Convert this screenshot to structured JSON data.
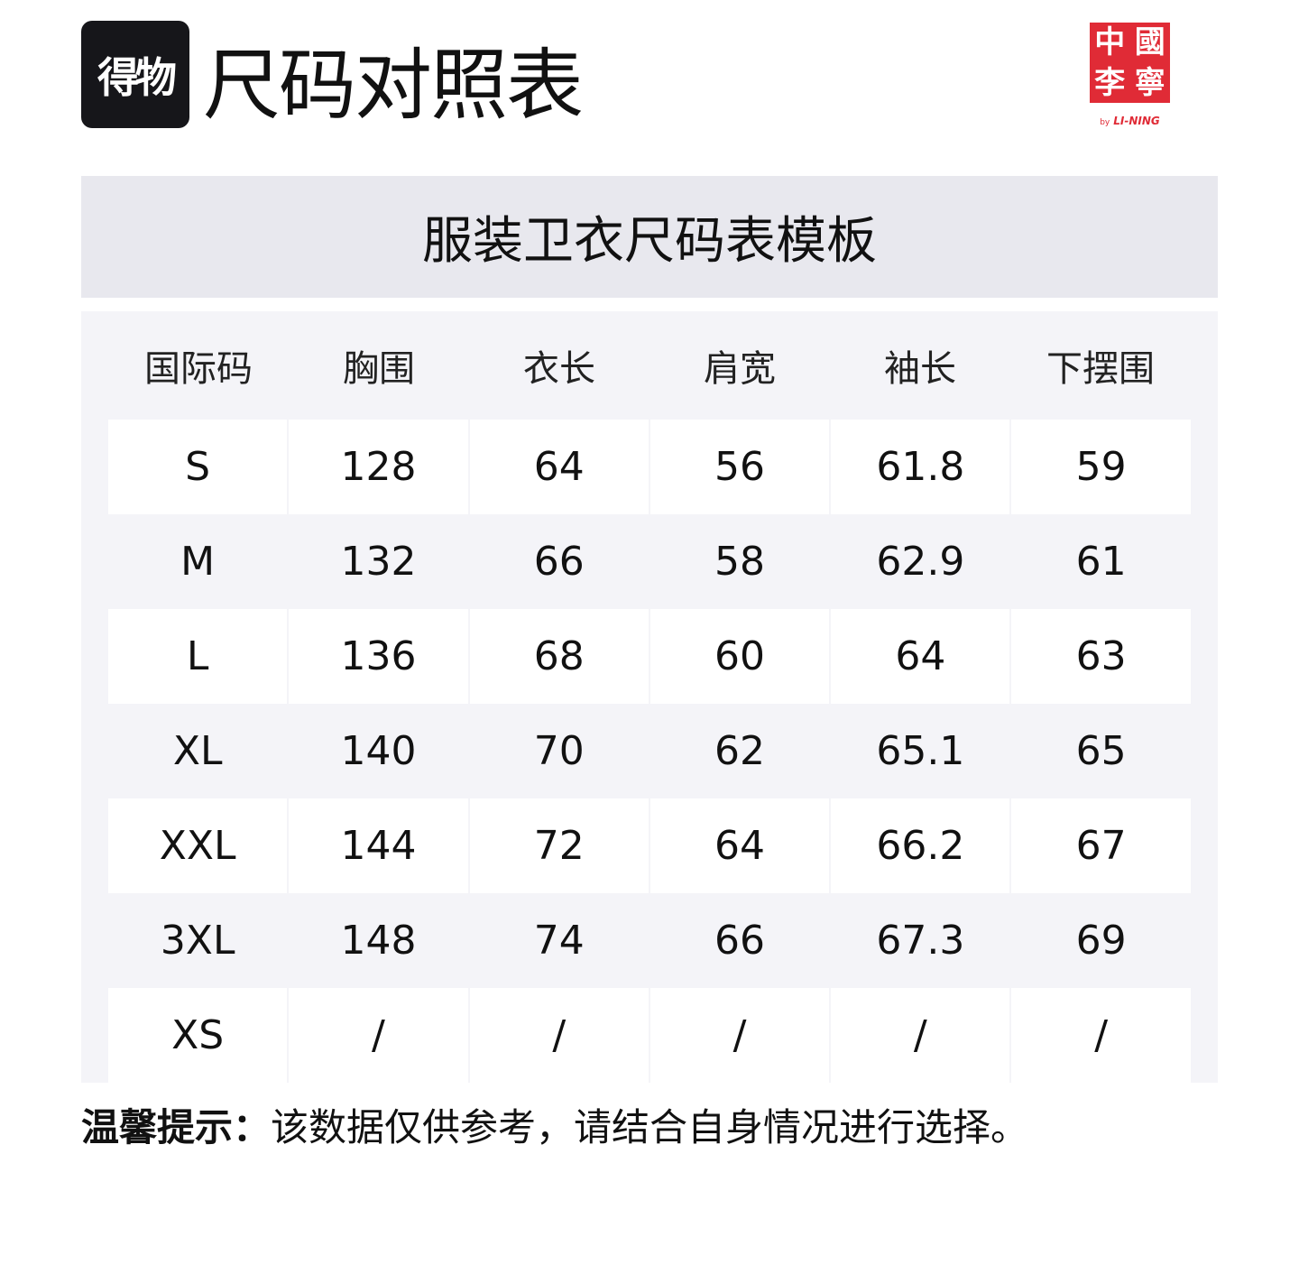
{
  "header": {
    "logo_text": "得物",
    "title": "尺码对照表",
    "brand_logo": [
      "中",
      "國",
      "李",
      "寧"
    ],
    "brand_by": "by",
    "brand_name": "LI-NING",
    "brand_color": "#e02b36"
  },
  "banner": {
    "title": "服装卫衣尺码表模板"
  },
  "table": {
    "columns": [
      "国际码",
      "胸围",
      "衣长",
      "肩宽",
      "袖长",
      "下摆围"
    ],
    "rows": [
      [
        "S",
        "128",
        "64",
        "56",
        "61.8",
        "59"
      ],
      [
        "M",
        "132",
        "66",
        "58",
        "62.9",
        "61"
      ],
      [
        "L",
        "136",
        "68",
        "60",
        "64",
        "63"
      ],
      [
        "XL",
        "140",
        "70",
        "62",
        "65.1",
        "65"
      ],
      [
        "XXL",
        "144",
        "72",
        "64",
        "66.2",
        "67"
      ],
      [
        "3XL",
        "148",
        "74",
        "66",
        "67.3",
        "69"
      ],
      [
        "XS",
        "/",
        "/",
        "/",
        "/",
        "/"
      ]
    ]
  },
  "footer": {
    "label": "温馨提示：",
    "text": "该数据仅供参考，请结合自身情况进行选择。"
  }
}
